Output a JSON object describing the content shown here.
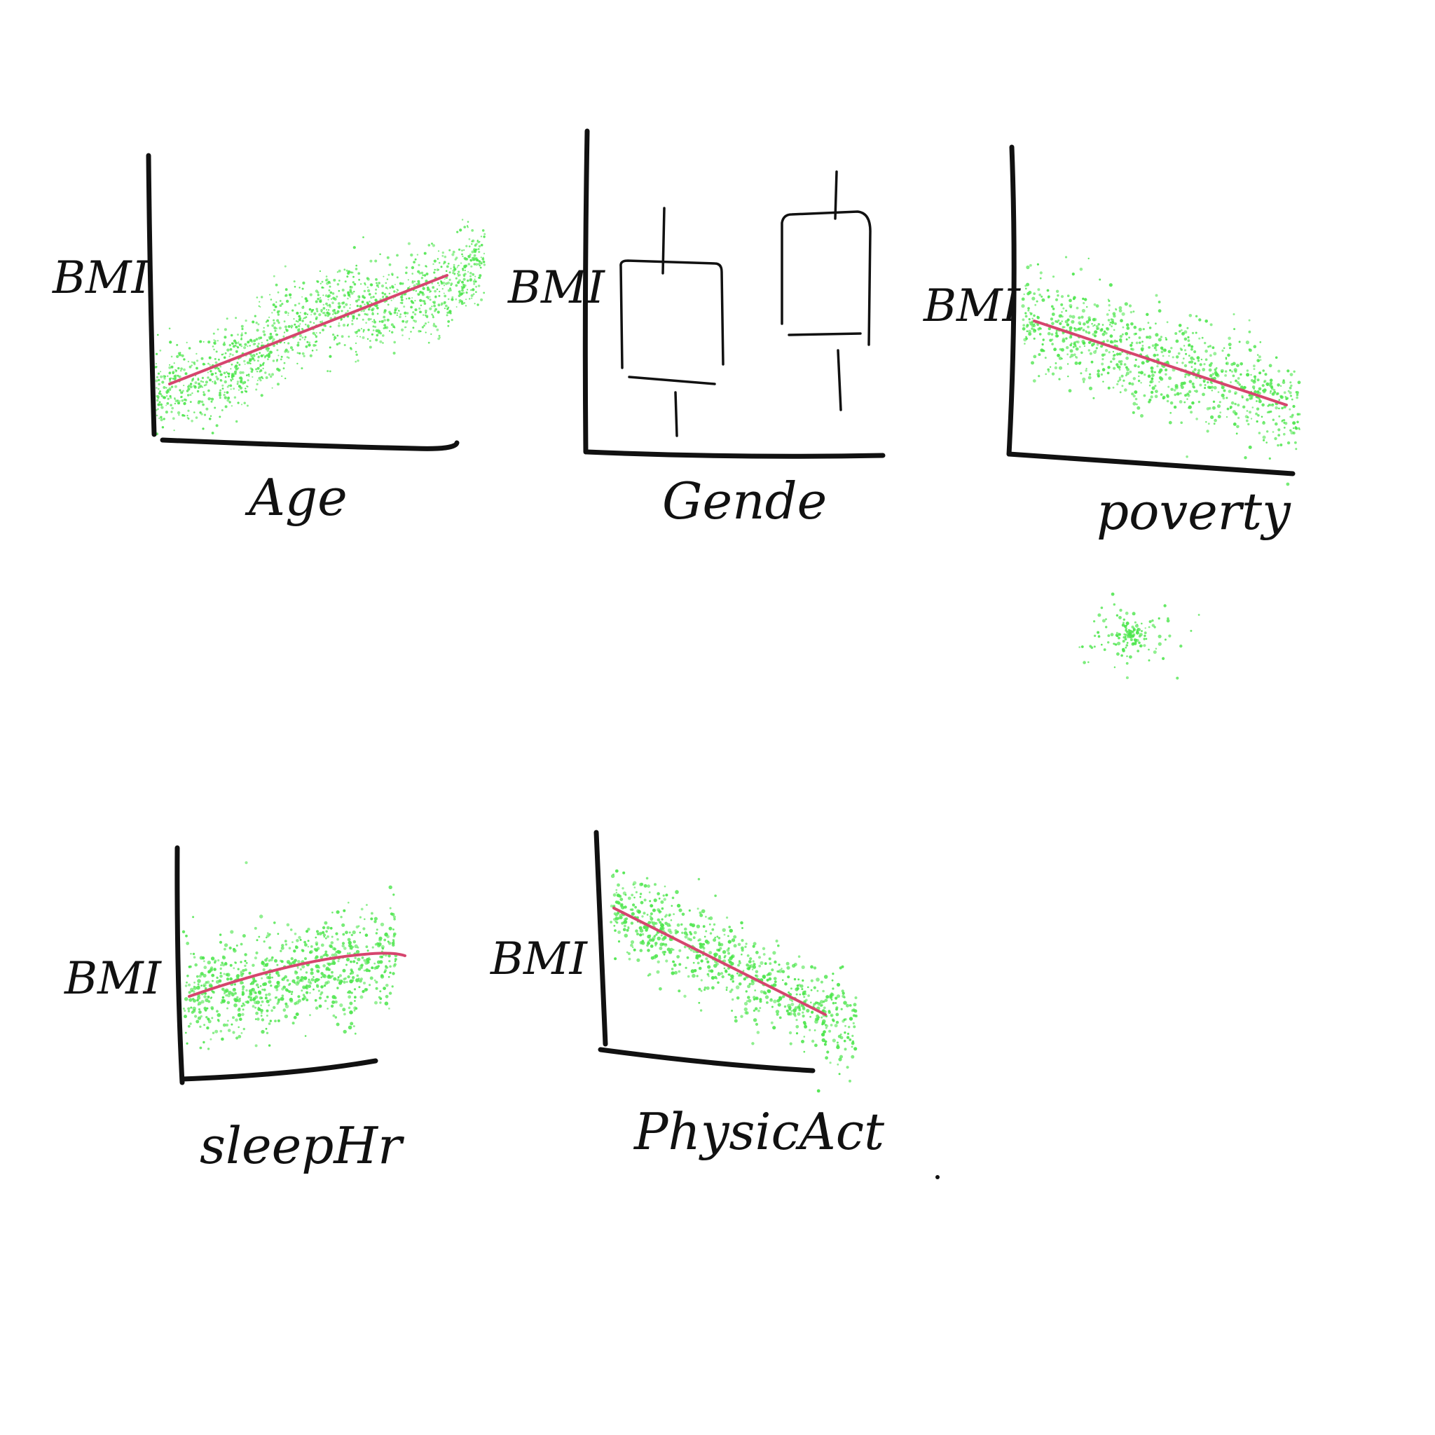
{
  "colors": {
    "ink": "#111111",
    "points": "#4ee64e",
    "trend": "#d6456e",
    "background": "#ffffff"
  },
  "chart_data": [
    {
      "type": "scatter",
      "xlabel": "Age",
      "ylabel": "BMI",
      "trend": "positive-linear",
      "point_density": "high"
    },
    {
      "type": "box",
      "xlabel": "Gende",
      "ylabel": "BMI",
      "categories": [
        "",
        ""
      ],
      "boxes": [
        {
          "whisker_low": 0.05,
          "q1": 0.22,
          "q3": 0.62,
          "whisker_high": 0.78
        },
        {
          "whisker_low": 0.14,
          "q1": 0.39,
          "q3": 0.77,
          "whisker_high": 0.95
        }
      ]
    },
    {
      "type": "scatter",
      "xlabel": "poverty",
      "ylabel": "BMI",
      "trend": "negative-linear",
      "point_density": "medium"
    },
    {
      "type": "scatter",
      "xlabel": "sleepHr",
      "ylabel": "BMI",
      "trend": "slight-positive-curve",
      "point_density": "medium"
    },
    {
      "type": "scatter",
      "xlabel": "PhysicAct",
      "ylabel": "BMI",
      "trend": "negative-linear",
      "point_density": "medium"
    }
  ]
}
